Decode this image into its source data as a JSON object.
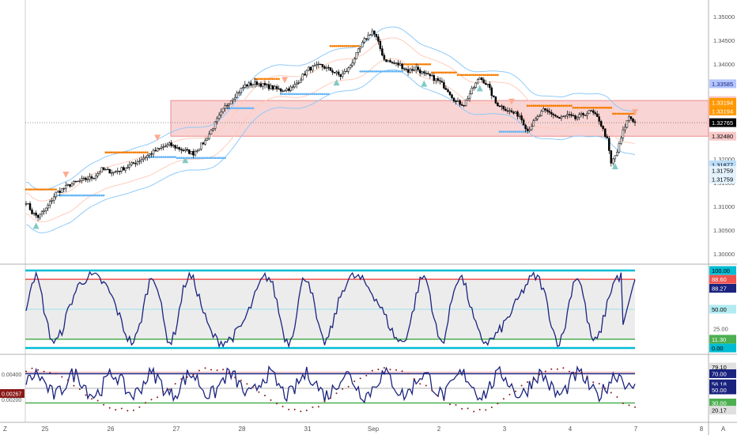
{
  "colors": {
    "bull": "#ffffff",
    "bear": "#000000",
    "orange_dots": "#f57c00",
    "blue_dots": "#64b5f6",
    "band_blue": "#90caf9",
    "band_orange": "#ffccbc",
    "zone_fill": "#f7c5c5",
    "zone_stroke": "#e57373",
    "osc_line": "#1a237e",
    "osc_cyan": "#00bcd4",
    "osc_red": "#ef5350",
    "osc_green": "#4caf50",
    "dot_red": "#8b1a1a",
    "up_triangle": "#80cbc4",
    "down_triangle": "#ffab91"
  },
  "price_axis": {
    "ticks": [
      "1.35000",
      "1.34500",
      "1.34000",
      "1.32000",
      "1.31500",
      "1.31000",
      "1.30500",
      "1.30000"
    ],
    "badges": [
      {
        "label": "1.33585",
        "value": 1.33585,
        "bg": "#b3c6ff",
        "fg": "#1a237e"
      },
      {
        "label": "1.33232",
        "value": 1.33232,
        "bg": "#f8c9c9",
        "fg": "#000000"
      },
      {
        "label": "1.33194",
        "value": 1.33194,
        "bg": "#ff9800",
        "fg": "#ffffff"
      },
      {
        "label": "1.33194",
        "value": 1.33194,
        "bg": "#ff9800",
        "fg": "#ffffff",
        "offset": 1
      },
      {
        "label": "1.32765",
        "value": 1.32765,
        "bg": "#000000",
        "fg": "#ffffff"
      },
      {
        "label": "1.32480",
        "value": 1.3248,
        "bg": "#f8c9c9",
        "fg": "#000000"
      },
      {
        "label": "1.31877",
        "value": 1.31877,
        "bg": "#bbdefb",
        "fg": "#000000"
      },
      {
        "label": "1.31759",
        "value": 1.31759,
        "bg": "#e3f2fd",
        "fg": "#000000"
      },
      {
        "label": "1.31759",
        "value": 1.31759,
        "bg": "#e3f2fd",
        "fg": "#000000",
        "offset": 1
      }
    ]
  },
  "osc1_axis": {
    "ticks": [
      "100.00",
      "75.00",
      "25.00"
    ],
    "badges": [
      {
        "label": "100.00",
        "bg": "#00bcd4",
        "fg": "#000000"
      },
      {
        "label": "88.60",
        "bg": "#ef5350",
        "fg": "#ffffff"
      },
      {
        "label": "88.27",
        "bg": "#1a237e",
        "fg": "#ffffff"
      },
      {
        "label": "50.00",
        "bg": "#b2ebf2",
        "fg": "#000000"
      },
      {
        "label": "11.30",
        "bg": "#4caf50",
        "fg": "#ffffff"
      },
      {
        "label": "0.00",
        "bg": "#00bcd4",
        "fg": "#000000"
      }
    ]
  },
  "osc2_left_axis": {
    "ticks": [
      "0.00400",
      "0.00200"
    ],
    "badge": {
      "label": "0.00267",
      "bg": "#8b1a1a",
      "fg": "#ffffff"
    }
  },
  "osc2_right_axis": {
    "badges": [
      {
        "label": "79.10",
        "bg": "#e0e0e0",
        "fg": "#000000"
      },
      {
        "label": "70.00",
        "bg": "#1a237e",
        "fg": "#ffffff"
      },
      {
        "label": "56.18",
        "bg": "#1a237e",
        "fg": "#ffffff"
      },
      {
        "label": "50.00",
        "bg": "#1a237e",
        "fg": "#ffffff"
      },
      {
        "label": "30.00",
        "bg": "#4caf50",
        "fg": "#ffffff"
      },
      {
        "label": "20.17",
        "bg": "#e0e0e0",
        "fg": "#000000"
      }
    ]
  },
  "time_axis": {
    "labels": [
      "25",
      "26",
      "27",
      "28",
      "31",
      "Sep",
      "2",
      "3",
      "4",
      "7",
      "8"
    ],
    "corner_left": "Z",
    "corner_right": "A"
  },
  "chart_data": {
    "type": "candlestick",
    "instrument_note": "",
    "price_range": [
      1.2985,
      1.3525
    ],
    "current_price": 1.32765,
    "resistance_zone": [
      1.3248,
      1.33232
    ],
    "anchors": [
      [
        0,
        1.311
      ],
      [
        3,
        1.3087
      ],
      [
        6,
        1.3078
      ],
      [
        10,
        1.3095
      ],
      [
        15,
        1.3128
      ],
      [
        22,
        1.3146
      ],
      [
        28,
        1.3155
      ],
      [
        34,
        1.3162
      ],
      [
        38,
        1.3178
      ],
      [
        44,
        1.3172
      ],
      [
        50,
        1.3182
      ],
      [
        56,
        1.3195
      ],
      [
        62,
        1.321
      ],
      [
        68,
        1.3224
      ],
      [
        72,
        1.323
      ],
      [
        78,
        1.322
      ],
      [
        84,
        1.3212
      ],
      [
        90,
        1.3238
      ],
      [
        96,
        1.3282
      ],
      [
        100,
        1.331
      ],
      [
        104,
        1.333
      ],
      [
        110,
        1.3355
      ],
      [
        116,
        1.336
      ],
      [
        122,
        1.3352
      ],
      [
        128,
        1.3345
      ],
      [
        134,
        1.335
      ],
      [
        138,
        1.337
      ],
      [
        142,
        1.339
      ],
      [
        148,
        1.3397
      ],
      [
        154,
        1.3385
      ],
      [
        158,
        1.3375
      ],
      [
        162,
        1.339
      ],
      [
        166,
        1.342
      ],
      [
        170,
        1.345
      ],
      [
        174,
        1.347
      ],
      [
        176,
        1.3455
      ],
      [
        180,
        1.341
      ],
      [
        184,
        1.3402
      ],
      [
        188,
        1.3398
      ],
      [
        192,
        1.3385
      ],
      [
        196,
        1.3392
      ],
      [
        200,
        1.3378
      ],
      [
        204,
        1.3372
      ],
      [
        208,
        1.3362
      ],
      [
        212,
        1.3345
      ],
      [
        216,
        1.332
      ],
      [
        220,
        1.3315
      ],
      [
        224,
        1.3345
      ],
      [
        228,
        1.3372
      ],
      [
        232,
        1.3355
      ],
      [
        236,
        1.3318
      ],
      [
        240,
        1.3308
      ],
      [
        244,
        1.3298
      ],
      [
        248,
        1.3292
      ],
      [
        252,
        1.326
      ],
      [
        256,
        1.3282
      ],
      [
        260,
        1.3302
      ],
      [
        264,
        1.3296
      ],
      [
        268,
        1.3285
      ],
      [
        272,
        1.3292
      ],
      [
        276,
        1.3285
      ],
      [
        280,
        1.3294
      ],
      [
        284,
        1.33
      ],
      [
        288,
        1.3282
      ],
      [
        292,
        1.324
      ],
      [
        294,
        1.319
      ],
      [
        297,
        1.3215
      ],
      [
        300,
        1.3258
      ],
      [
        303,
        1.329
      ],
      [
        306,
        1.3277
      ]
    ],
    "candle_count": 307,
    "oscillator_1": {
      "range": [
        0,
        100
      ],
      "levels": {
        "upper": 88.6,
        "upper_band": 100,
        "mid": 50,
        "lower": 11.3,
        "lower_band": 0
      },
      "last": 88.27
    },
    "oscillator_2": {
      "levels": {
        "high": 70,
        "mid": 50,
        "low": 30
      },
      "last": 56.18,
      "histogram_last": 0.00267
    },
    "signals": {
      "up": [
        5,
        80,
        156,
        200,
        228,
        296
      ],
      "down": [
        20,
        66,
        130,
        244,
        306
      ]
    }
  }
}
